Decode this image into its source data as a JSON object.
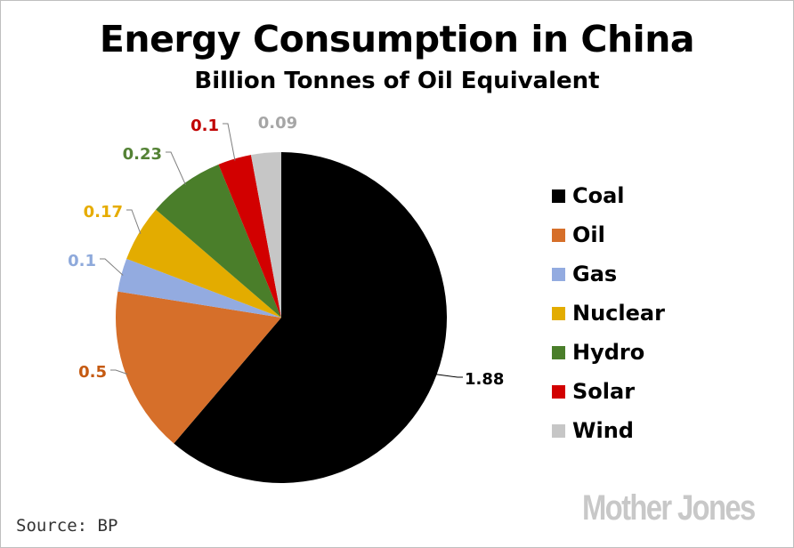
{
  "title": "Energy Consumption in China",
  "subtitle": "Billion Tonnes of Oil Equivalent",
  "source": "Source: BP",
  "logo": "Mother Jones",
  "chart_data": {
    "type": "pie",
    "title": "Energy Consumption in China",
    "subtitle": "Billion Tonnes of Oil Equivalent",
    "legend_position": "right",
    "slices": [
      {
        "name": "Coal",
        "value": 1.88,
        "label": "1.88",
        "color": "#000000"
      },
      {
        "name": "Oil",
        "value": 0.5,
        "label": "0.5",
        "color": "#d66f2a"
      },
      {
        "name": "Gas",
        "value": 0.1,
        "label": "0.1",
        "color": "#93abe0"
      },
      {
        "name": "Nuclear",
        "value": 0.17,
        "label": "0.17",
        "color": "#e3ac00"
      },
      {
        "name": "Hydro",
        "value": 0.23,
        "label": "0.23",
        "color": "#4a7e2a"
      },
      {
        "name": "Solar",
        "value": 0.1,
        "label": "0.1",
        "color": "#d20000"
      },
      {
        "name": "Wind",
        "value": 0.09,
        "label": "0.09",
        "color": "#c6c6c6"
      }
    ]
  }
}
